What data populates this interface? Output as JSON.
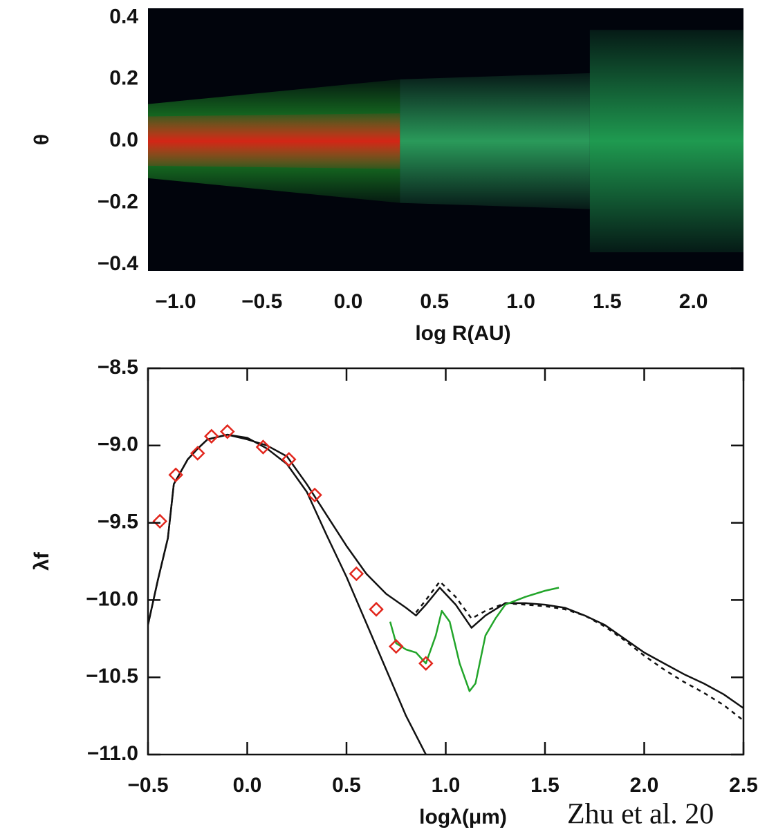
{
  "chart_data": [
    {
      "type": "heatmap",
      "xlabel": "log R(AU)",
      "ylabel": "θ",
      "xlim": [
        -1.16,
        2.29
      ],
      "ylim": [
        -0.42,
        0.43
      ],
      "xticks": [
        {
          "value": -1,
          "label": "−1.0"
        },
        {
          "value": -0.5,
          "label": "−0.5"
        },
        {
          "value": 0,
          "label": "0.0"
        },
        0.5,
        {
          "value": 1,
          "label": "1.0"
        },
        1.5,
        {
          "value": 2,
          "label": "2.0"
        }
      ],
      "yticks": [
        {
          "value": -0.4,
          "label": "−0.4"
        },
        {
          "value": -0.2,
          "label": "−0.2"
        },
        {
          "value": 0,
          "label": "0.0"
        },
        0.2,
        0.4
      ],
      "background": "#01040c",
      "regions": [
        {
          "x": [
            -1.16,
            0.3
          ],
          "theta": [
            0.12,
            0.2
          ],
          "color": "#1f9a2a"
        },
        {
          "x": [
            -1.16,
            0.3
          ],
          "theta": [
            0.08,
            0.09
          ],
          "color": "#d42516"
        },
        {
          "x": [
            0.3,
            1.4
          ],
          "theta": [
            0.2,
            0.22
          ],
          "color": "#2a9a5a"
        },
        {
          "x": [
            1.4,
            2.29
          ],
          "theta": [
            0.36,
            0.36
          ],
          "color": "#1f9a50"
        }
      ]
    },
    {
      "type": "line",
      "xlabel": "logλ(μm)",
      "ylabel": "λf",
      "annotation": "Zhu et al. 20",
      "xlim": [
        -0.5,
        2.5
      ],
      "ylim": [
        -11,
        -8.5
      ],
      "xticks": [
        {
          "value": -0.5,
          "label": "−0.5"
        },
        {
          "value": 0,
          "label": "0.0"
        },
        0.5,
        {
          "value": 1,
          "label": "1.0"
        },
        1.5,
        {
          "value": 2,
          "label": "2.0"
        },
        2.5
      ],
      "yticks": [
        {
          "value": -11,
          "label": "−11.0"
        },
        {
          "value": -10.5,
          "label": "−10.5"
        },
        {
          "value": -10,
          "label": "−10.0"
        },
        {
          "value": -9.5,
          "label": "−9.5"
        },
        {
          "value": -9,
          "label": "−9.0"
        },
        {
          "value": -8.5,
          "label": "−8.5"
        }
      ],
      "series": [
        {
          "color": "#111111",
          "style": "solid",
          "x": [
            -0.5,
            -0.45,
            -0.4,
            -0.37,
            -0.3,
            -0.25,
            -0.2,
            -0.1,
            0.0,
            0.1,
            0.2,
            0.3,
            0.4,
            0.5,
            0.6,
            0.7,
            0.8,
            0.85,
            0.9,
            0.97,
            1.05,
            1.13,
            1.2,
            1.3,
            1.4,
            1.5,
            1.6,
            1.7,
            1.8,
            1.9,
            2.0,
            2.1,
            2.2,
            2.3,
            2.4,
            2.5
          ],
          "values": [
            -10.16,
            -9.87,
            -9.6,
            -9.25,
            -9.09,
            -9.02,
            -8.96,
            -8.93,
            -8.96,
            -9.0,
            -9.07,
            -9.25,
            -9.45,
            -9.65,
            -9.83,
            -9.96,
            -10.05,
            -10.1,
            -10.03,
            -9.92,
            -10.03,
            -10.18,
            -10.1,
            -10.02,
            -10.02,
            -10.03,
            -10.05,
            -10.1,
            -10.16,
            -10.25,
            -10.34,
            -10.41,
            -10.48,
            -10.54,
            -10.61,
            -10.7
          ]
        },
        {
          "color": "#111111",
          "style": "solid",
          "x": [
            -0.5,
            -0.45,
            -0.4,
            -0.37,
            -0.3,
            -0.25,
            -0.2,
            -0.1,
            0.0,
            0.1,
            0.2,
            0.3,
            0.4,
            0.5,
            0.6,
            0.7,
            0.8,
            0.9
          ],
          "values": [
            -10.16,
            -9.87,
            -9.6,
            -9.25,
            -9.09,
            -9.02,
            -8.96,
            -8.93,
            -8.95,
            -9.02,
            -9.12,
            -9.3,
            -9.58,
            -9.85,
            -10.15,
            -10.45,
            -10.75,
            -11.0
          ]
        },
        {
          "color": "#111111",
          "style": "dashed",
          "x": [
            0.85,
            0.9,
            0.97,
            1.05,
            1.13,
            1.2,
            1.3,
            1.4,
            1.5,
            1.6,
            1.7,
            1.8,
            1.9,
            2.0,
            2.1,
            2.2,
            2.3,
            2.4,
            2.5
          ],
          "values": [
            -10.08,
            -10.0,
            -9.88,
            -9.98,
            -10.12,
            -10.07,
            -10.02,
            -10.03,
            -10.04,
            -10.06,
            -10.1,
            -10.17,
            -10.26,
            -10.36,
            -10.45,
            -10.53,
            -10.6,
            -10.68,
            -10.78
          ]
        },
        {
          "color": "#22a52a",
          "style": "solid",
          "x": [
            0.72,
            0.75,
            0.8,
            0.85,
            0.9,
            0.95,
            0.98,
            1.02,
            1.07,
            1.12,
            1.15,
            1.2,
            1.25,
            1.3,
            1.4,
            1.5,
            1.57
          ],
          "values": [
            -10.14,
            -10.28,
            -10.32,
            -10.34,
            -10.41,
            -10.23,
            -10.07,
            -10.14,
            -10.41,
            -10.59,
            -10.54,
            -10.23,
            -10.12,
            -10.03,
            -9.98,
            -9.94,
            -9.92
          ]
        },
        {
          "color": "#e2261c",
          "marker": "diamond",
          "x": [
            -0.44,
            -0.36,
            -0.25,
            -0.18,
            -0.1,
            0.08,
            0.21,
            0.34,
            0.55,
            0.65,
            0.75,
            0.9
          ],
          "values": [
            -9.49,
            -9.19,
            -9.05,
            -8.94,
            -8.91,
            -9.01,
            -9.09,
            -9.32,
            -9.83,
            -10.06,
            -10.3,
            -10.41
          ]
        }
      ]
    }
  ]
}
